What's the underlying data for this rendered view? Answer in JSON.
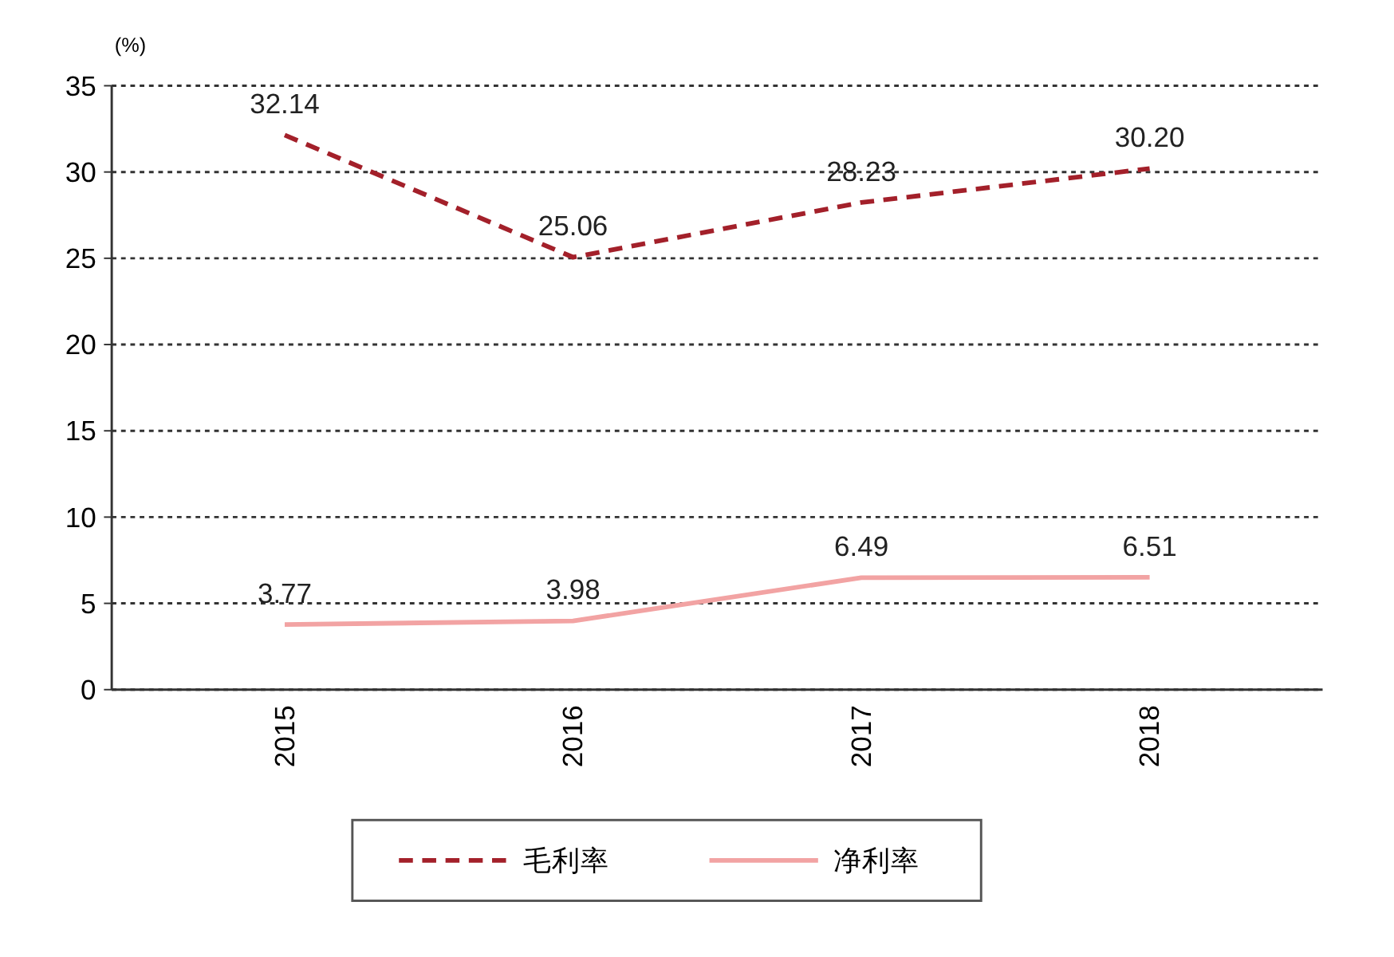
{
  "chart_data": {
    "type": "line",
    "ylabel": "(%)",
    "categories": [
      "2015",
      "2016",
      "2017",
      "2018"
    ],
    "series": [
      {
        "name": "毛利率",
        "color": "#a3202a",
        "values": [
          32.14,
          25.06,
          28.23,
          30.2
        ],
        "line_style": "dashed",
        "value_labels": [
          "32.14",
          "25.06",
          "28.23",
          "30.20"
        ]
      },
      {
        "name": "净利率",
        "color": "#f2a3a3",
        "values": [
          3.77,
          3.98,
          6.49,
          6.51
        ],
        "line_style": "solid",
        "value_labels": [
          "3.77",
          "3.98",
          "6.49",
          "6.51"
        ]
      }
    ],
    "ylim": [
      0,
      35
    ],
    "yticks": [
      0,
      5,
      10,
      15,
      20,
      25,
      30,
      35
    ],
    "grid": "y",
    "legend": "bottom",
    "marker": "none",
    "data_labels": true
  }
}
